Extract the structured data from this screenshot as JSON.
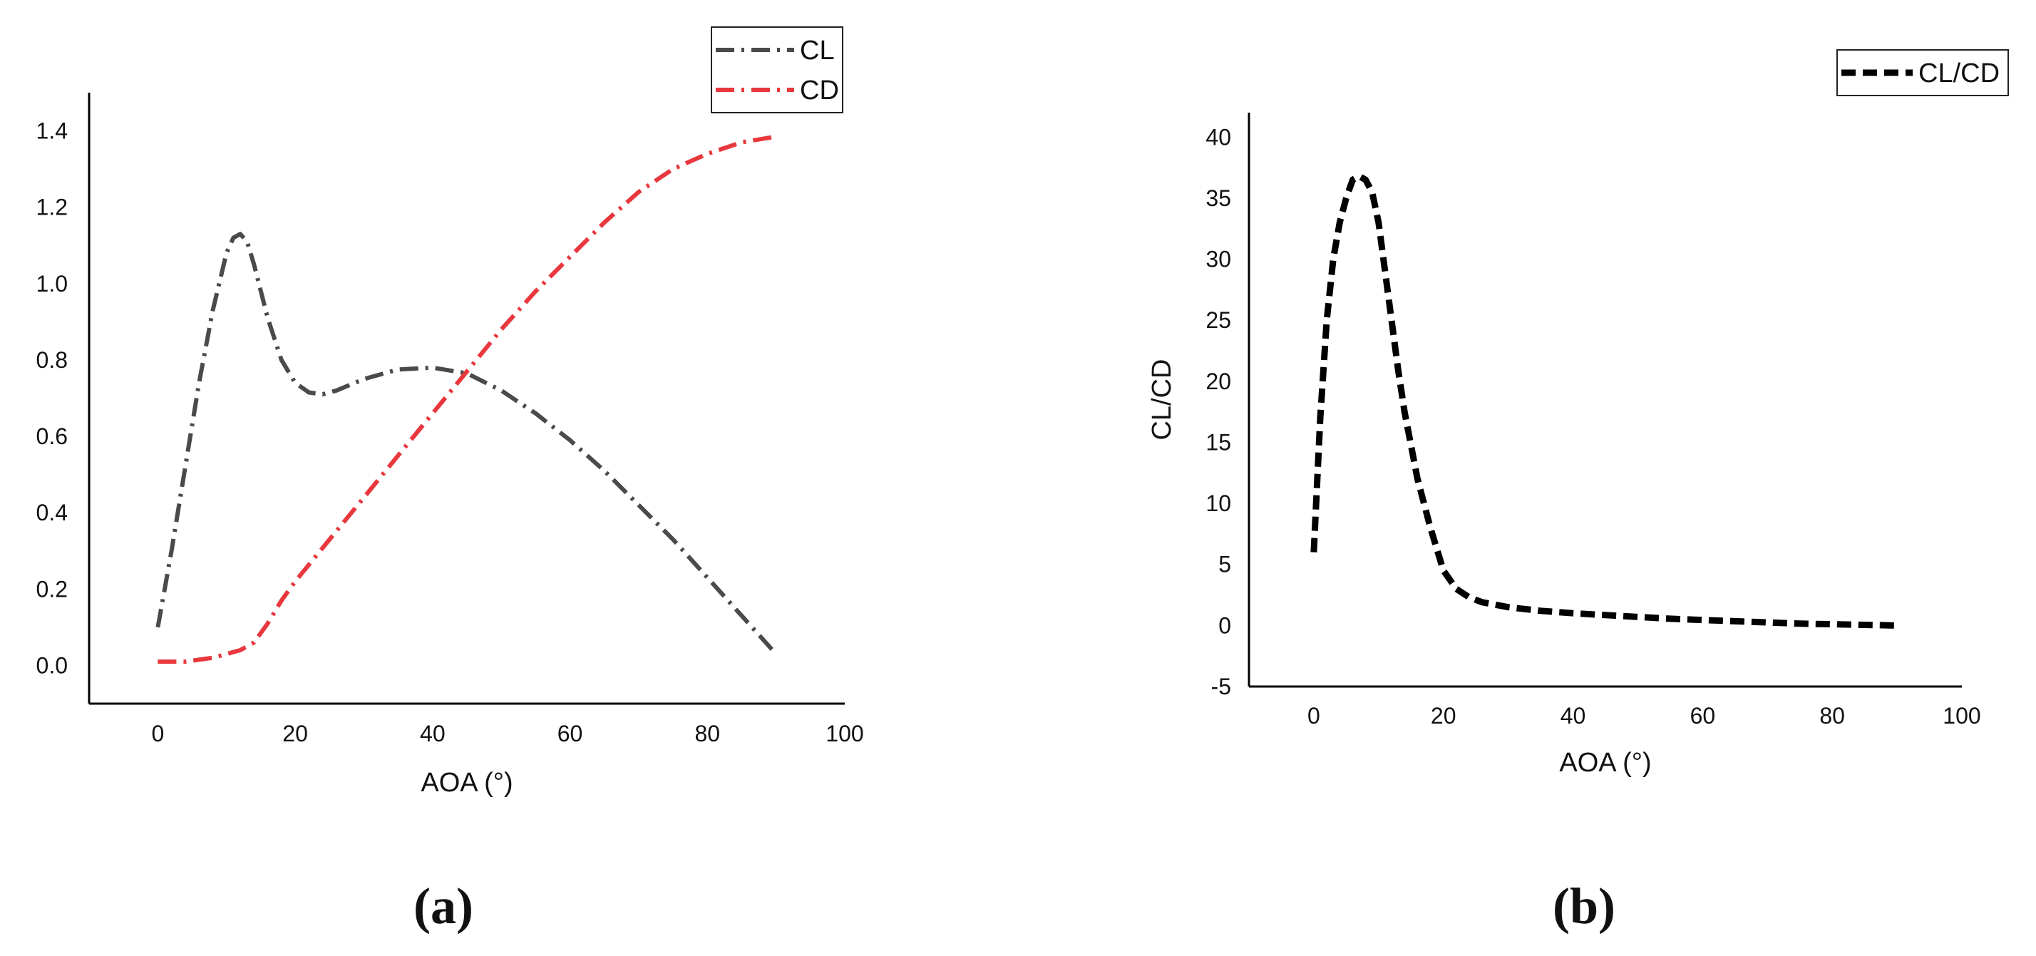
{
  "chart_data": [
    {
      "type": "line",
      "xlabel": "AOA (°)",
      "ylabel": "",
      "xlim": [
        -10,
        100
      ],
      "ylim": [
        -0.1,
        1.5
      ],
      "xticks": [
        0,
        20,
        40,
        60,
        80,
        100
      ],
      "xtick_labels": [
        "0",
        "20",
        "40",
        "60",
        "80",
        "100"
      ],
      "yticks": [
        0,
        0.2,
        0.4,
        0.6,
        0.8,
        1.0,
        1.2,
        1.4
      ],
      "ytick_labels": [
        "0.0",
        "0.2",
        "0.4",
        "0.6",
        "0.8",
        "1.0",
        "1.2",
        "1.4"
      ],
      "grid": false,
      "legend_position": "top-right",
      "caption": "(a)",
      "series": [
        {
          "name": "CL",
          "color": "#4a4a4a",
          "dash": "dash-dot",
          "x": [
            0,
            2,
            4,
            6,
            8,
            10,
            11,
            12,
            13,
            14,
            16,
            18,
            20,
            22,
            24,
            26,
            30,
            35,
            40,
            45,
            50,
            55,
            60,
            65,
            70,
            75,
            80,
            85,
            90
          ],
          "y": [
            0.1,
            0.3,
            0.52,
            0.74,
            0.93,
            1.08,
            1.12,
            1.13,
            1.11,
            1.05,
            0.91,
            0.8,
            0.74,
            0.715,
            0.71,
            0.72,
            0.75,
            0.775,
            0.78,
            0.765,
            0.72,
            0.66,
            0.59,
            0.51,
            0.42,
            0.33,
            0.23,
            0.13,
            0.03
          ]
        },
        {
          "name": "CD",
          "color": "#e8383d",
          "dash": "dash-dot",
          "x": [
            0,
            2,
            4,
            6,
            8,
            10,
            12,
            14,
            16,
            18,
            20,
            25,
            30,
            35,
            40,
            45,
            50,
            55,
            60,
            65,
            70,
            75,
            80,
            85,
            90
          ],
          "y": [
            0.01,
            0.01,
            0.01,
            0.015,
            0.02,
            0.03,
            0.04,
            0.06,
            0.11,
            0.17,
            0.22,
            0.33,
            0.44,
            0.55,
            0.66,
            0.77,
            0.88,
            0.98,
            1.07,
            1.16,
            1.24,
            1.3,
            1.34,
            1.37,
            1.385
          ]
        }
      ]
    },
    {
      "type": "line",
      "xlabel": "AOA (°)",
      "ylabel": "CL/CD",
      "xlim": [
        -10,
        100
      ],
      "ylim": [
        -5,
        42
      ],
      "xticks": [
        0,
        20,
        40,
        60,
        80,
        100
      ],
      "xtick_labels": [
        "0",
        "20",
        "40",
        "60",
        "80",
        "100"
      ],
      "yticks": [
        -5,
        0,
        5,
        10,
        15,
        20,
        25,
        30,
        35,
        40
      ],
      "ytick_labels": [
        "-5",
        "0",
        "5",
        "10",
        "15",
        "20",
        "25",
        "30",
        "35",
        "40"
      ],
      "grid": false,
      "legend_position": "top-right",
      "caption": "(b)",
      "series": [
        {
          "name": "CL/CD",
          "color": "#000000",
          "dash": "dashed",
          "x": [
            0,
            1,
            2,
            3,
            4,
            5,
            6,
            7,
            8,
            9,
            10,
            11,
            12,
            13,
            14,
            16,
            18,
            20,
            22,
            24,
            26,
            28,
            30,
            35,
            40,
            45,
            50,
            55,
            60,
            65,
            70,
            75,
            80,
            85,
            90
          ],
          "y": [
            6,
            17,
            25,
            30,
            33,
            35,
            36.5,
            36.8,
            36.5,
            35.5,
            33,
            29,
            25,
            21,
            17.5,
            12,
            8,
            4.5,
            3,
            2.3,
            1.9,
            1.7,
            1.5,
            1.2,
            1.0,
            0.85,
            0.7,
            0.55,
            0.45,
            0.35,
            0.25,
            0.15,
            0.1,
            0.05,
            0
          ]
        }
      ]
    }
  ]
}
